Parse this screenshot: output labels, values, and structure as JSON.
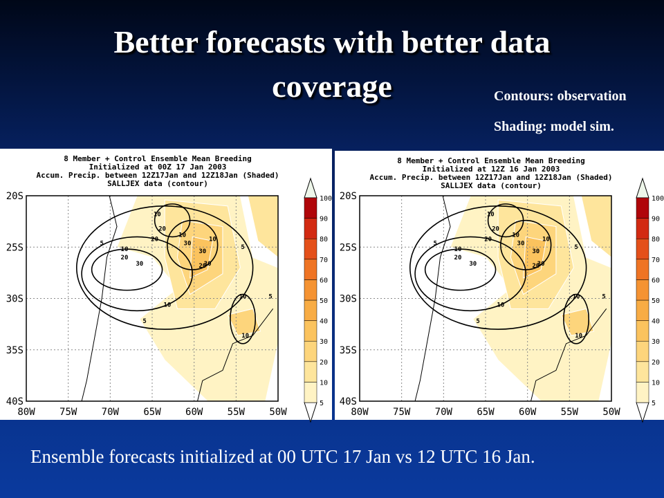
{
  "title_line1": "Better forecasts with better data",
  "title_line2": "coverage",
  "note1": "Contours: observation",
  "note2": "Shading: model sim.",
  "caption": "Ensemble forecasts initialized at 00 UTC 17 Jan vs 12 UTC 16 Jan.",
  "lat_labels": [
    "20S",
    "25S",
    "30S",
    "35S",
    "40S"
  ],
  "lon_labels": [
    "80W",
    "75W",
    "70W",
    "65W",
    "60W",
    "55W",
    "50W"
  ],
  "colorbar": {
    "ticks": [
      5,
      10,
      20,
      30,
      40,
      50,
      60,
      70,
      80,
      90,
      100
    ],
    "colors": [
      "#fff3c4",
      "#fee59c",
      "#fdd57c",
      "#fbc35e",
      "#f8ac44",
      "#f59332",
      "#ef7424",
      "#e4501a",
      "#d22a12",
      "#b0060a"
    ]
  },
  "panels": [
    {
      "header": [
        "8 Member + Control Ensemble Mean Breeding",
        "Initialized at 00Z 17 Jan 2003",
        "Accum. Precip. between 12Z17Jan and 12Z18Jan (Shaded)",
        "SALLJEX data (contour)"
      ],
      "contour_labels": [
        "10",
        "20",
        "20",
        "10",
        "30",
        "30",
        "10",
        "5",
        "10",
        "20",
        "30",
        "30",
        "20",
        "5",
        "10",
        "5",
        "10",
        "5",
        "10"
      ]
    },
    {
      "header": [
        "8 Member + Control Ensemble Mean Breeding",
        "Initialized at 12Z 16 Jan 2003",
        "Accum. Precip. between 12Z17Jan and 12Z18Jan (Shaded)",
        "SALLJEX data (contour)"
      ],
      "contour_labels": [
        "10",
        "20",
        "20",
        "10",
        "30",
        "30",
        "10",
        "5",
        "10",
        "20",
        "30",
        "30",
        "20",
        "5",
        "10",
        "5",
        "10",
        "5",
        "10"
      ]
    }
  ]
}
